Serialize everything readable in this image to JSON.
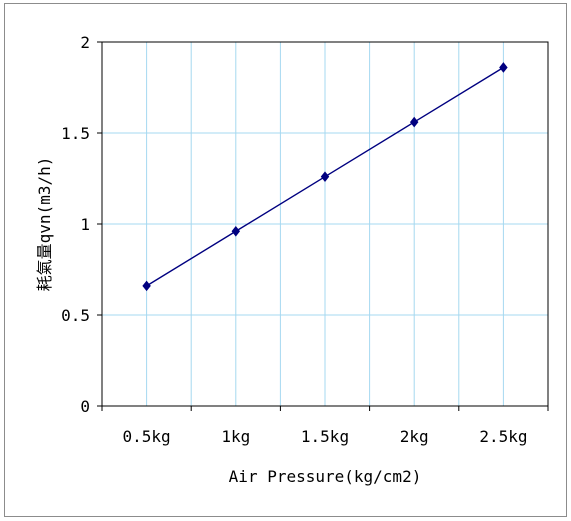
{
  "chart_data": {
    "type": "line",
    "title": "",
    "xlabel": "Air Pressure(kg/cm2)",
    "ylabel": "耗氣量qvn(m3/h)",
    "categories": [
      "0.5kg",
      "1kg",
      "1.5kg",
      "2kg",
      "2.5kg"
    ],
    "series": [
      {
        "values": [
          0.66,
          0.96,
          1.26,
          1.56,
          1.86
        ],
        "color": "#000080"
      }
    ],
    "ylim": [
      0,
      2
    ],
    "yticks": [
      "0",
      "0.5",
      "1",
      "1.5",
      "2"
    ],
    "grid": true,
    "grid_color": "#a6d8f0",
    "marker": "diamond",
    "legend": "none"
  }
}
